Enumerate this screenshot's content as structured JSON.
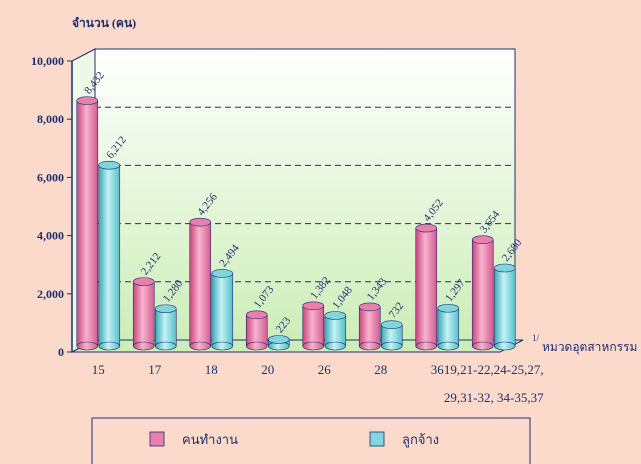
{
  "chart_data": {
    "type": "bar",
    "y_label": "จำนวน (คน)",
    "x_label_note": "1/",
    "x_label": "หมวดอุตสาหกรรม",
    "categories": [
      "15",
      "17",
      "18",
      "20",
      "26",
      "28",
      "36",
      "19,21-22,24-25,27, 29,31-32, 34-35,37"
    ],
    "series": [
      {
        "name": "คนทำงาน",
        "color": "#e97fac",
        "values": [
          8432,
          2212,
          4256,
          1073,
          1382,
          1343,
          4052,
          3654
        ],
        "value_labels": [
          "8,432",
          "2,212",
          "4,256",
          "1,073",
          "1,382",
          "1,343",
          "4,052",
          "3,654"
        ]
      },
      {
        "name": "ลูกจ้าง",
        "color": "#7fd6de",
        "values": [
          6212,
          1280,
          2494,
          223,
          1048,
          732,
          1297,
          2680
        ],
        "value_labels": [
          "6,212",
          "1,280",
          "2,494",
          "223",
          "1,048",
          "732",
          "1,297",
          "2,680"
        ]
      }
    ],
    "ylim": [
      0,
      10000
    ],
    "yticks": [
      0,
      {
        "value": 2000,
        "label": "2,000"
      },
      {
        "value": 4000,
        "label": "4,000"
      },
      {
        "value": 6000,
        "label": "6,000"
      },
      {
        "value": 8000,
        "label": "8,000"
      },
      {
        "value": 10000,
        "label": "10,000"
      }
    ],
    "grid": true
  }
}
